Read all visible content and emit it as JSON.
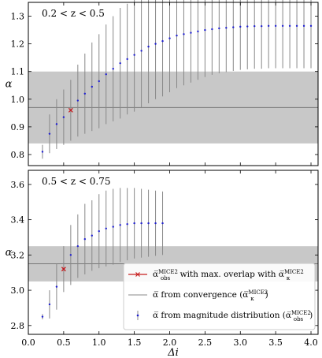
{
  "chart_data": [
    {
      "type": "scatter",
      "panel_label": "0.2 < z < 0.5",
      "ylabel": "α",
      "xlim": [
        0,
        4.1
      ],
      "ylim": [
        0.76,
        1.35
      ],
      "yticks": [
        0.8,
        0.9,
        1.0,
        1.1,
        1.2,
        1.3
      ],
      "ytick_labels": [
        "0.8",
        "0.9",
        "1.0",
        "1.1",
        "1.2",
        "1.3"
      ],
      "band": [
        0.84,
        1.1
      ],
      "convergence_line": 0.97,
      "max_overlap_point": {
        "x": 0.6,
        "y": 0.96
      },
      "series": [
        {
          "points": [
            [
              0.2,
              0.81,
              0.025
            ],
            [
              0.3,
              0.875,
              0.07
            ],
            [
              0.4,
              0.91,
              0.09
            ],
            [
              0.5,
              0.935,
              0.1
            ],
            [
              0.6,
              0.96,
              0.11
            ],
            [
              0.7,
              0.995,
              0.13
            ],
            [
              0.8,
              1.02,
              0.145
            ],
            [
              0.9,
              1.045,
              0.16
            ],
            [
              1.0,
              1.065,
              0.17
            ],
            [
              1.1,
              1.09,
              0.18
            ],
            [
              1.2,
              1.11,
              0.19
            ],
            [
              1.3,
              1.13,
              0.2
            ],
            [
              1.4,
              1.145,
              0.2
            ],
            [
              1.5,
              1.16,
              0.205
            ],
            [
              1.6,
              1.175,
              0.205
            ],
            [
              1.7,
              1.19,
              0.205
            ],
            [
              1.8,
              1.2,
              0.2
            ],
            [
              1.9,
              1.21,
              0.2
            ],
            [
              2.0,
              1.22,
              0.195
            ],
            [
              2.1,
              1.23,
              0.19
            ],
            [
              2.2,
              1.235,
              0.185
            ],
            [
              2.3,
              1.24,
              0.18
            ],
            [
              2.4,
              1.245,
              0.175
            ],
            [
              2.5,
              1.25,
              0.17
            ],
            [
              2.6,
              1.253,
              0.165
            ],
            [
              2.7,
              1.256,
              0.162
            ],
            [
              2.8,
              1.258,
              0.16
            ],
            [
              2.9,
              1.26,
              0.158
            ],
            [
              3.0,
              1.262,
              0.156
            ],
            [
              3.1,
              1.263,
              0.155
            ],
            [
              3.2,
              1.264,
              0.154
            ],
            [
              3.3,
              1.264,
              0.154
            ],
            [
              3.4,
              1.265,
              0.153
            ],
            [
              3.5,
              1.265,
              0.153
            ],
            [
              3.6,
              1.265,
              0.153
            ],
            [
              3.7,
              1.265,
              0.153
            ],
            [
              3.8,
              1.265,
              0.153
            ],
            [
              3.9,
              1.265,
              0.153
            ],
            [
              4.0,
              1.265,
              0.153
            ]
          ]
        }
      ]
    },
    {
      "type": "scatter",
      "panel_label": "0.5 < z < 0.75",
      "ylabel": "α",
      "xlabel": "Δi",
      "xlim": [
        0,
        4.1
      ],
      "ylim": [
        2.75,
        3.68
      ],
      "yticks": [
        2.8,
        3.0,
        3.2,
        3.4,
        3.6
      ],
      "ytick_labels": [
        "2.8",
        "3.0",
        "3.2",
        "3.4",
        "3.6"
      ],
      "xticks": [
        0.0,
        0.5,
        1.0,
        1.5,
        2.0,
        2.5,
        3.0,
        3.5,
        4.0
      ],
      "xtick_labels": [
        "0.0",
        "0.5",
        "1.0",
        "1.5",
        "2.0",
        "2.5",
        "3.0",
        "3.5",
        "4.0"
      ],
      "band": [
        3.05,
        3.25
      ],
      "convergence_line": 3.15,
      "max_overlap_point": {
        "x": 0.5,
        "y": 3.12
      },
      "series": [
        {
          "points": [
            [
              0.2,
              2.85,
              0.015
            ],
            [
              0.3,
              2.92,
              0.08
            ],
            [
              0.4,
              3.02,
              0.13
            ],
            [
              0.5,
              3.12,
              0.13
            ],
            [
              0.6,
              3.2,
              0.17
            ],
            [
              0.7,
              3.25,
              0.18
            ],
            [
              0.8,
              3.29,
              0.2
            ],
            [
              0.9,
              3.31,
              0.2
            ],
            [
              1.0,
              3.335,
              0.21
            ],
            [
              1.1,
              3.35,
              0.215
            ],
            [
              1.2,
              3.36,
              0.215
            ],
            [
              1.3,
              3.37,
              0.21
            ],
            [
              1.4,
              3.375,
              0.205
            ],
            [
              1.5,
              3.38,
              0.2
            ],
            [
              1.6,
              3.38,
              0.195
            ],
            [
              1.7,
              3.38,
              0.19
            ],
            [
              1.8,
              3.38,
              0.185
            ],
            [
              1.9,
              3.38,
              0.18
            ]
          ]
        }
      ],
      "legend": {
        "position": "lower-right",
        "items": [
          {
            "marker": "cross",
            "color": "#c81e1e",
            "pre": "α̅",
            "sub": "obs",
            "sup": "MICE2",
            "text": " with max. overlap with ",
            "pre2": "α̅",
            "sub2": "κ",
            "sup2": "MICE2"
          },
          {
            "marker": "line",
            "color": "#888888",
            "text": "α̅ from convergence (α̅",
            "sub": "κ",
            "sup": "MICE2",
            "post": ")"
          },
          {
            "marker": "errorpoint",
            "color": "#1f1fd0",
            "text": "α̅ from magnitude distribution (α̅",
            "sub": "obs",
            "sup": "MICE2",
            "post": ")"
          }
        ]
      }
    }
  ],
  "colors": {
    "points": "#1f1fd0",
    "errorbars": "#888888",
    "band": "#c8c8c8",
    "convergence_line": "#777777",
    "max_overlap": "#c81e1e"
  }
}
